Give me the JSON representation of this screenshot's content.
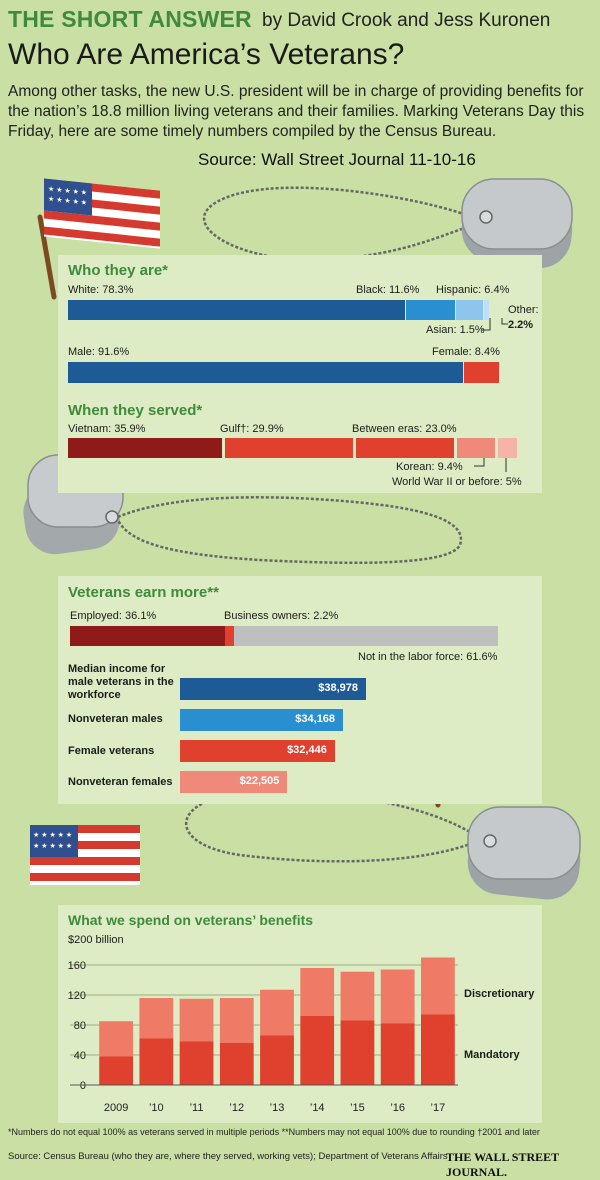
{
  "header": {
    "kicker": "THE SHORT ANSWER",
    "byline": "by David Crook and Jess Kuronen",
    "headline": "Who Are America’s Veterans?",
    "dek": "Among other tasks, the new U.S. president will be in charge of providing benefits for the nation’s 18.8 million living veterans and their families. Marking Veterans Day this Friday, here are some timely numbers compiled by the Census Bureau.",
    "source_note": "Source:  Wall Street Journal 11-10-16"
  },
  "colors": {
    "background": "#c9dfa3",
    "panel": "#ddecc4",
    "title_green": "#3f8a3c",
    "navy": "#1d5a96",
    "blue": "#2a8fd0",
    "light_blue": "#8cc6ec",
    "lightest_blue": "#bfe0f4",
    "red": "#e0402e",
    "dark_red": "#8e1a1a",
    "pink": "#ef8a7a",
    "light_pink": "#f6b4a8",
    "gray": "#bfbfbf"
  },
  "icons": [
    "us-flag-icon",
    "dog-tags-icon"
  ],
  "chart_data": [
    {
      "type": "bar",
      "orientation": "horizontal-stacked",
      "title": "Who they are*",
      "series": [
        {
          "name": "White",
          "value": 78.3,
          "label": "White: 78.3%"
        },
        {
          "name": "Black",
          "value": 11.6,
          "label": "Black: 11.6%"
        },
        {
          "name": "Hispanic",
          "value": 6.4,
          "label": "Hispanic: 6.4%"
        },
        {
          "name": "Asian",
          "value": 1.5,
          "label": "Asian: 1.5%"
        },
        {
          "name": "Other",
          "value": 2.2,
          "label_name": "Other:",
          "label_value": "2.2%"
        }
      ]
    },
    {
      "type": "bar",
      "orientation": "horizontal-stacked",
      "series": [
        {
          "name": "Male",
          "value": 91.6,
          "label": "Male: 91.6%"
        },
        {
          "name": "Female",
          "value": 8.4,
          "label": "Female: 8.4%"
        }
      ]
    },
    {
      "type": "bar",
      "orientation": "horizontal-stacked",
      "title": "When they served*",
      "series": [
        {
          "name": "Vietnam",
          "value": 35.9,
          "label": "Vietnam: 35.9%"
        },
        {
          "name": "Gulf",
          "value": 29.9,
          "label": "Gulf†: 29.9%"
        },
        {
          "name": "Between eras",
          "value": 23.0,
          "label": "Between eras: 23.0%"
        },
        {
          "name": "Korean",
          "value": 9.4,
          "label": "Korean: 9.4%"
        },
        {
          "name": "World War II or before",
          "value": 5,
          "label": "World War II or before: 5%"
        }
      ]
    },
    {
      "type": "bar",
      "orientation": "horizontal-stacked",
      "title": "Veterans earn more**",
      "series": [
        {
          "name": "Employed",
          "value": 36.1,
          "label": "Employed: 36.1%"
        },
        {
          "name": "Business owners",
          "value": 2.2,
          "label": "Business owners: 2.2%"
        },
        {
          "name": "Not in the labor force",
          "value": 61.6,
          "label": "Not in the labor force: 61.6%"
        }
      ]
    },
    {
      "type": "bar",
      "orientation": "horizontal",
      "categories": [
        "Median income for male veterans in the workforce",
        "Nonveteran males",
        "Female veterans",
        "Nonveteran females"
      ],
      "values": [
        38978,
        34168,
        32446,
        22505
      ],
      "value_labels": [
        "$38,978",
        "$34,168",
        "$32,446",
        "$22,505"
      ]
    },
    {
      "type": "bar",
      "orientation": "vertical-stacked",
      "title": "What we spend on veterans’ benefits",
      "unit_label": "$200 billion",
      "categories": [
        "2009",
        "’10",
        "’11",
        "’12",
        "’13",
        "’14",
        "’15",
        "’16",
        "’17"
      ],
      "series": [
        {
          "name": "Mandatory",
          "values": [
            38,
            62,
            58,
            56,
            66,
            92,
            86,
            82,
            94
          ]
        },
        {
          "name": "Discretionary",
          "values": [
            47,
            54,
            57,
            60,
            61,
            64,
            65,
            72,
            76
          ]
        }
      ],
      "ylim": [
        0,
        200
      ],
      "yticks": [
        "160",
        "120",
        "80",
        "40",
        "0"
      ],
      "ytick_values": [
        160,
        120,
        80,
        40,
        0
      ]
    }
  ],
  "footer": {
    "notes": "*Numbers do not equal 100% as veterans served in multiple periods  **Numbers may not equal 100% due to rounding   †2001 and later",
    "source": "Source: Census Bureau (who they are, where they served, working vets); Department of Veterans Affairs",
    "brand": "THE WALL STREET JOURNAL."
  }
}
